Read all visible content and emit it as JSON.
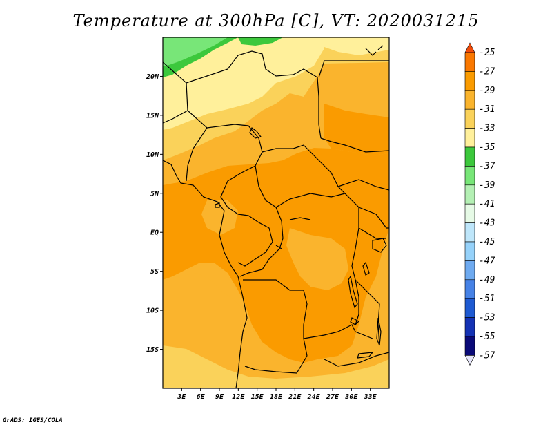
{
  "title": "Temperature at 300hPa [C], VT: 2020031215",
  "credit": "GrADS: IGES/COLA",
  "map": {
    "lon_range": [
      0,
      36
    ],
    "lat_range": [
      -20,
      25
    ],
    "lat_ticks": [
      {
        "value": 20,
        "label": "20N"
      },
      {
        "value": 15,
        "label": "15N"
      },
      {
        "value": 10,
        "label": "10N"
      },
      {
        "value": 5,
        "label": "5N"
      },
      {
        "value": 0,
        "label": "EQ"
      },
      {
        "value": -5,
        "label": "5S"
      },
      {
        "value": -10,
        "label": "10S"
      },
      {
        "value": -15,
        "label": "15S"
      }
    ],
    "lon_ticks": [
      {
        "value": 3,
        "label": "3E"
      },
      {
        "value": 6,
        "label": "6E"
      },
      {
        "value": 9,
        "label": "9E"
      },
      {
        "value": 12,
        "label": "12E"
      },
      {
        "value": 15,
        "label": "15E"
      },
      {
        "value": 18,
        "label": "18E"
      },
      {
        "value": 21,
        "label": "21E"
      },
      {
        "value": 24,
        "label": "24E"
      },
      {
        "value": 27,
        "label": "27E"
      },
      {
        "value": 30,
        "label": "30E"
      },
      {
        "value": 33,
        "label": "33E"
      }
    ]
  },
  "colorbar": {
    "labels": [
      "-25",
      "-27",
      "-29",
      "-31",
      "-33",
      "-35",
      "-37",
      "-39",
      "-41",
      "-43",
      "-45",
      "-47",
      "-49",
      "-51",
      "-53",
      "-55",
      "-57"
    ],
    "colors": [
      "#f04b0a",
      "#fa7800",
      "#fa9b00",
      "#fab42d",
      "#fad25a",
      "#fff09b",
      "#3cc83c",
      "#78e678",
      "#b4f0b4",
      "#e6fae6",
      "#bee6fa",
      "#96d2fa",
      "#6eaaf0",
      "#4682e6",
      "#1e5ad2",
      "#1432b4",
      "#0a0a78",
      "#e6e6fa"
    ]
  }
}
